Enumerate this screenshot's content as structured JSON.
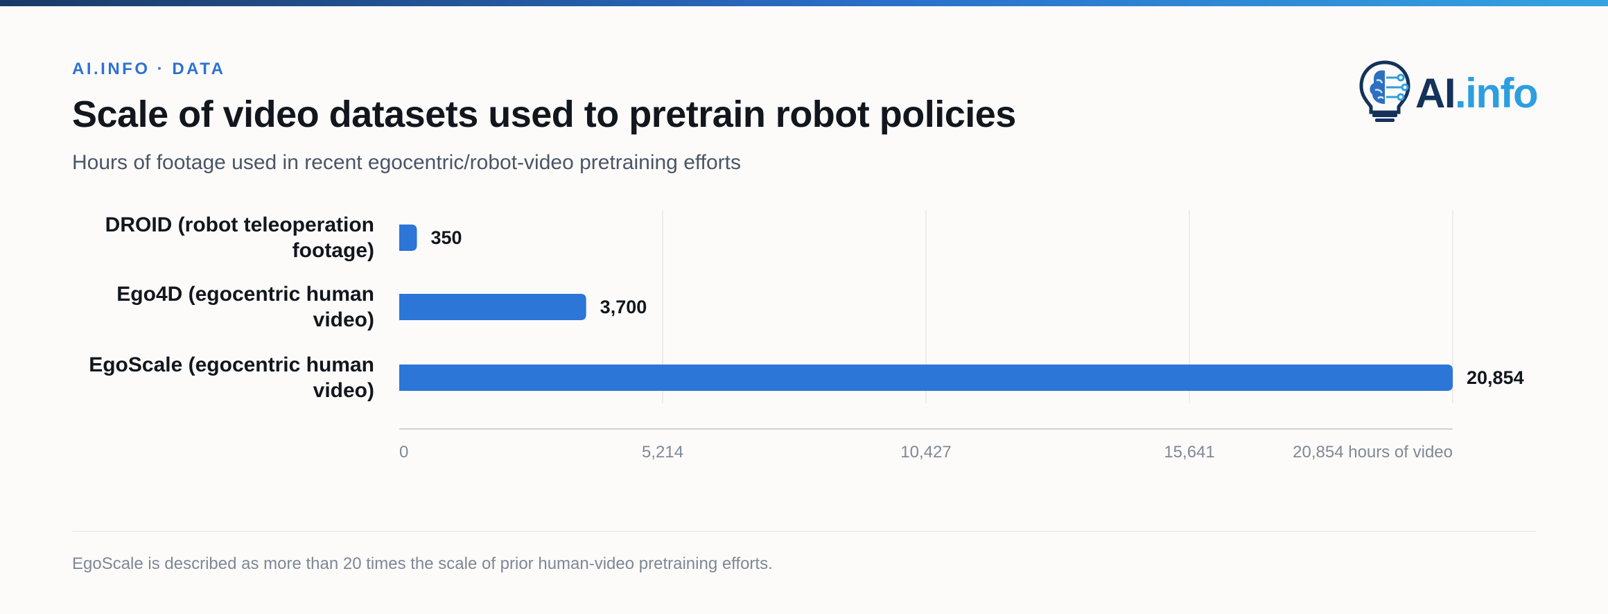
{
  "header": {
    "kicker": "AI.INFO · DATA",
    "title": "Scale of video datasets used to pretrain robot policies",
    "subtitle": "Hours of footage used in recent egocentric/robot-video pretraining efforts"
  },
  "logo": {
    "text_main": "AI",
    "text_accent": ".info",
    "icon": "lightbulb-brain-icon"
  },
  "colors": {
    "bar": "#2b76d6",
    "title": "#12161d",
    "kicker": "#2b73d2",
    "logo_dark": "#14325a",
    "logo_light": "#2d9ee0"
  },
  "chart_data": {
    "type": "bar",
    "orientation": "horizontal",
    "categories": [
      [
        "DROID (robot teleoperation",
        "footage)"
      ],
      [
        "Ego4D (egocentric human",
        "video)"
      ],
      [
        "EgoScale (egocentric human",
        "video)"
      ]
    ],
    "values": [
      350,
      3700,
      20854
    ],
    "value_labels": [
      "350",
      "3,700",
      "20,854"
    ],
    "xlim": [
      0,
      20854
    ],
    "x_ticks": [
      0,
      5214,
      10427,
      15641,
      20854
    ],
    "x_tick_labels": [
      "0",
      "5,214",
      "10,427",
      "15,641",
      "20,854 hours of video"
    ],
    "grid": true
  },
  "footnote": "EgoScale is described as more than 20 times the scale of prior human-video pretraining efforts."
}
